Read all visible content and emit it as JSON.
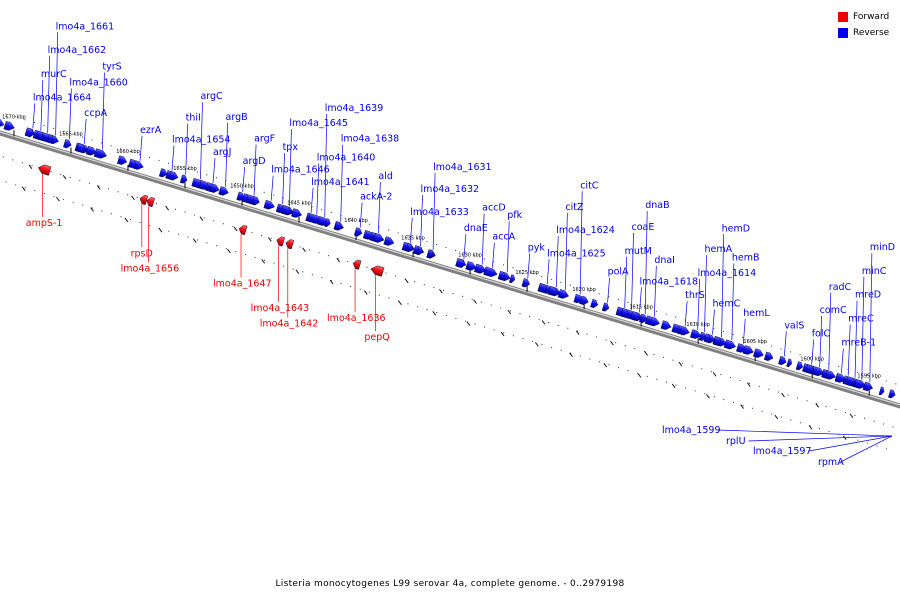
{
  "title": "Listeria monocytogenes L99 serovar 4a, complete genome. - 0..2979198",
  "legend": {
    "forward": {
      "label": "Forward",
      "color": "#ee0000"
    },
    "reverse": {
      "label": "Reverse",
      "color": "#0000ee"
    }
  },
  "axis": {
    "line_color": "#808080",
    "ticks": [
      {
        "label": "1670 kbp",
        "kbp": 1670
      },
      {
        "label": "1665 kbp",
        "kbp": 1665
      },
      {
        "label": "1660 kbp",
        "kbp": 1660
      },
      {
        "label": "1655 kbp",
        "kbp": 1655
      },
      {
        "label": "1650 kbp",
        "kbp": 1650
      },
      {
        "label": "1645 kbp",
        "kbp": 1645
      },
      {
        "label": "1640 kbp",
        "kbp": 1640
      },
      {
        "label": "1635 kbp",
        "kbp": 1635
      },
      {
        "label": "1630 kbp",
        "kbp": 1630
      },
      {
        "label": "1625 kbp",
        "kbp": 1625
      },
      {
        "label": "1620 kbp",
        "kbp": 1620
      },
      {
        "label": "1615 kbp",
        "kbp": 1615
      },
      {
        "label": "1610 kbp",
        "kbp": 1610
      },
      {
        "label": "1605 kbp",
        "kbp": 1605
      },
      {
        "label": "1600 kbp",
        "kbp": 1600
      },
      {
        "label": "1595 kbp",
        "kbp": 1595
      }
    ]
  },
  "reverse_genes": [
    {
      "label": "lmo4a_1664",
      "kbp": 1668.7
    },
    {
      "label": "lmo4a_1662",
      "kbp": 1667.4
    },
    {
      "label": "murC",
      "kbp": 1668.0
    },
    {
      "label": "lmo4a_1661",
      "kbp": 1666.7
    },
    {
      "label": "lmo4a_1660",
      "kbp": 1665.5
    },
    {
      "label": "ccpA",
      "kbp": 1664.2
    },
    {
      "label": "tyrS",
      "kbp": 1662.6
    },
    {
      "label": "ezrA",
      "kbp": 1659.3
    },
    {
      "label": "lmo4a_1654",
      "kbp": 1656.5
    },
    {
      "label": "thiI",
      "kbp": 1655.3
    },
    {
      "label": "argC",
      "kbp": 1654.0
    },
    {
      "label": "argJ",
      "kbp": 1652.9
    },
    {
      "label": "argB",
      "kbp": 1651.8
    },
    {
      "label": "argD",
      "kbp": 1650.3
    },
    {
      "label": "argF",
      "kbp": 1649.3
    },
    {
      "label": "lmo4a_1645",
      "kbp": 1646.2
    },
    {
      "label": "lmo4a_1646",
      "kbp": 1647.8
    },
    {
      "label": "tpx",
      "kbp": 1646.8
    },
    {
      "label": "lmo4a_1641",
      "kbp": 1644.3
    },
    {
      "label": "lmo4a_1640",
      "kbp": 1643.8
    },
    {
      "label": "lmo4a_1639",
      "kbp": 1643.1
    },
    {
      "label": "lmo4a_1638",
      "kbp": 1641.7
    },
    {
      "label": "ackA-2",
      "kbp": 1640.0
    },
    {
      "label": "ald",
      "kbp": 1638.4
    },
    {
      "label": "lmo4a_1633",
      "kbp": 1635.6
    },
    {
      "label": "lmo4a_1632",
      "kbp": 1634.7
    },
    {
      "label": "lmo4a_1631",
      "kbp": 1633.6
    },
    {
      "label": "dnaE",
      "kbp": 1630.9
    },
    {
      "label": "accA",
      "kbp": 1628.4
    },
    {
      "label": "accD",
      "kbp": 1629.3
    },
    {
      "label": "pfk",
      "kbp": 1627.1
    },
    {
      "label": "pyk",
      "kbp": 1625.3
    },
    {
      "label": "lmo4a_1625",
      "kbp": 1623.6
    },
    {
      "label": "lmo4a_1624",
      "kbp": 1622.8
    },
    {
      "label": "citZ",
      "kbp": 1622.0
    },
    {
      "label": "citC",
      "kbp": 1620.7
    },
    {
      "label": "polA",
      "kbp": 1618.3
    },
    {
      "label": "mutM",
      "kbp": 1616.8
    },
    {
      "label": "coaE",
      "kbp": 1616.2
    },
    {
      "label": "lmo4a_1618",
      "kbp": 1615.5
    },
    {
      "label": "dnaB",
      "kbp": 1615.0
    },
    {
      "label": "dnaI",
      "kbp": 1614.2
    },
    {
      "label": "thrS",
      "kbp": 1611.5
    },
    {
      "label": "lmo4a_1614",
      "kbp": 1610.4
    },
    {
      "label": "hemC",
      "kbp": 1609.1
    },
    {
      "label": "hemA",
      "kbp": 1609.8
    },
    {
      "label": "hemD",
      "kbp": 1608.3
    },
    {
      "label": "hemB",
      "kbp": 1607.4
    },
    {
      "label": "hemL",
      "kbp": 1606.4
    },
    {
      "label": "valS",
      "kbp": 1602.8
    },
    {
      "label": "folC",
      "kbp": 1600.4
    },
    {
      "label": "comC",
      "kbp": 1599.7
    },
    {
      "label": "radC",
      "kbp": 1598.9
    },
    {
      "label": "mreB-1",
      "kbp": 1597.8
    },
    {
      "label": "mreC",
      "kbp": 1597.2
    },
    {
      "label": "mreD",
      "kbp": 1596.6
    },
    {
      "label": "minC",
      "kbp": 1596.0
    },
    {
      "label": "minD",
      "kbp": 1595.3
    }
  ],
  "forward_genes": [
    {
      "label": "ampS-1",
      "kbp": 1666.8
    },
    {
      "label": "rpsD",
      "kbp": 1658.1
    },
    {
      "label": "lmo4a_1656",
      "kbp": 1657.5
    },
    {
      "label": "lmo4a_1647",
      "kbp": 1649.4
    },
    {
      "label": "lmo4a_1643",
      "kbp": 1646.1
    },
    {
      "label": "lmo4a_1642",
      "kbp": 1645.3
    },
    {
      "label": "lmo4a_1636",
      "kbp": 1639.4
    },
    {
      "label": "pepQ",
      "kbp": 1637.6
    }
  ],
  "offmap_genes": [
    {
      "label": "lmo4a_1599"
    },
    {
      "label": "rplU"
    },
    {
      "label": "lmo4a_1597"
    },
    {
      "label": "rpmA"
    }
  ]
}
